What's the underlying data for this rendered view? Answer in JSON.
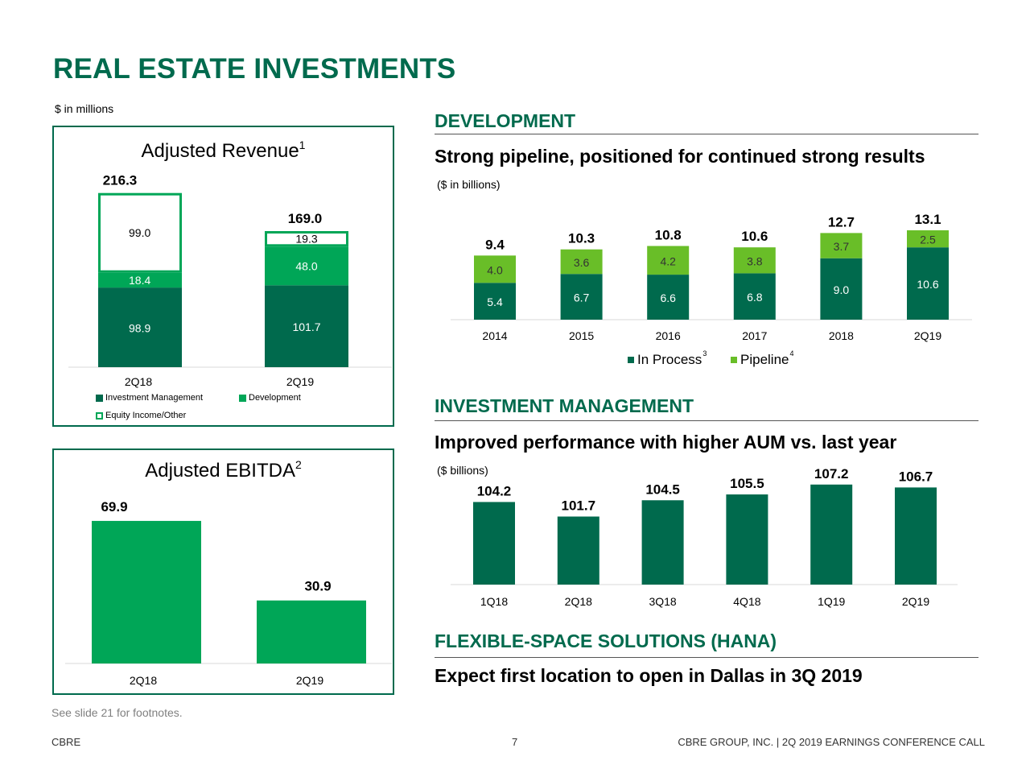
{
  "page": {
    "title": "REAL ESTATE INVESTMENTS",
    "units": "$ in millions",
    "footnote": "See slide 21 for footnotes.",
    "footer_left": "CBRE",
    "page_number": "7",
    "footer_right": "CBRE GROUP, INC. | 2Q 2019 EARNINGS CONFERENCE CALL"
  },
  "colors": {
    "dark_green": "#006a4d",
    "mid_green": "#00a657",
    "light_green": "#69be28",
    "outline_green": "#00a657"
  },
  "sections": {
    "development": {
      "heading": "DEVELOPMENT",
      "subheading": "Strong pipeline, positioned for continued strong results",
      "unit": "($ in billions)"
    },
    "investment_management": {
      "heading": "INVESTMENT MANAGEMENT",
      "subheading": "Improved performance with higher AUM vs. last year",
      "unit": "($ billions)"
    },
    "hana": {
      "heading": "FLEXIBLE-SPACE SOLUTIONS (HANA)",
      "subheading": "Expect first location to open in Dallas in 3Q 2019"
    }
  },
  "chart_data": [
    {
      "id": "adjusted-revenue",
      "type": "bar",
      "stacked": true,
      "title": "Adjusted Revenue",
      "title_sup": "1",
      "categories": [
        "2Q18",
        "2Q19"
      ],
      "series": [
        {
          "name": "Investment Management",
          "values": [
            98.9,
            101.7
          ]
        },
        {
          "name": "Development",
          "values": [
            18.4,
            48.0
          ]
        },
        {
          "name": "Equity Income/Other",
          "values": [
            99.0,
            19.3
          ]
        }
      ],
      "value_labels": [
        [
          "98.9",
          "18.4",
          "99.0"
        ],
        [
          "101.7",
          "48.0",
          "19.3"
        ]
      ],
      "totals": [
        216.3,
        169.0
      ],
      "total_labels": [
        "216.3",
        "169.0"
      ],
      "ylim": [
        0,
        230
      ]
    },
    {
      "id": "adjusted-ebitda",
      "type": "bar",
      "title": "Adjusted EBITDA",
      "title_sup": "2",
      "categories": [
        "2Q18",
        "2Q19"
      ],
      "values": [
        69.9,
        30.9
      ],
      "value_labels": [
        "69.9",
        "30.9"
      ],
      "ylim": [
        0,
        78
      ]
    },
    {
      "id": "development-pipeline",
      "type": "bar",
      "stacked": true,
      "categories": [
        "2014",
        "2015",
        "2016",
        "2017",
        "2018",
        "2Q19"
      ],
      "series": [
        {
          "name": "In Process",
          "name_sup": "3",
          "values": [
            5.4,
            6.7,
            6.6,
            6.8,
            9.0,
            10.6
          ],
          "labels": [
            "5.4",
            "6.7",
            "6.6",
            "6.8",
            "9.0",
            "10.6"
          ]
        },
        {
          "name": "Pipeline",
          "name_sup": "4",
          "values": [
            4.0,
            3.6,
            4.2,
            3.8,
            3.7,
            2.5
          ],
          "labels": [
            "4.0",
            "3.6",
            "4.2",
            "3.8",
            "3.7",
            "2.5"
          ]
        }
      ],
      "totals": [
        9.4,
        10.3,
        10.8,
        10.6,
        12.7,
        13.1
      ],
      "total_labels": [
        "9.4",
        "10.3",
        "10.8",
        "10.6",
        "12.7",
        "13.1"
      ],
      "ylim": [
        0,
        15
      ]
    },
    {
      "id": "aum",
      "type": "bar",
      "categories": [
        "1Q18",
        "2Q18",
        "3Q18",
        "4Q18",
        "1Q19",
        "2Q19"
      ],
      "values": [
        104.2,
        101.7,
        104.5,
        105.5,
        107.2,
        106.7
      ],
      "value_labels": [
        "104.2",
        "101.7",
        "104.5",
        "105.5",
        "107.2",
        "106.7"
      ],
      "ylim": [
        90,
        108
      ]
    }
  ]
}
